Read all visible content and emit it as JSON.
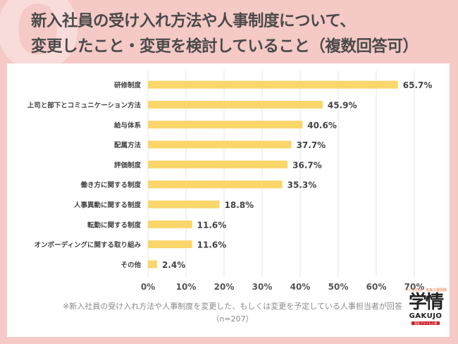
{
  "title_line1": "新入社員の受け入れ方法や人事制度について、",
  "title_line2": "変更したこと・変更を検討していること（複数回答可）",
  "footnote": "※新入社員の受け入れ方法や人事制度を変更した、もしくは変更を予定している人事担当者が回答",
  "sample_size": "（n=207）",
  "logo": {
    "tagline": "つくるのは、未来の選択肢",
    "mark": "学情",
    "brand": "GAKUJO",
    "band": "東証プライム上場"
  },
  "colors": {
    "bar": "#fad66b",
    "background": "#f4c9c6",
    "panel": "#ffffff",
    "grid": "#e4e4e4"
  },
  "chart_data": {
    "type": "bar",
    "orientation": "horizontal",
    "categories": [
      "研修制度",
      "上司と部下とコミュニケーション方法",
      "給与体系",
      "配属方法",
      "評価制度",
      "働き方に関する制度",
      "人事異動に関する制度",
      "転勤に関する制度",
      "オンボーディングに関する取り組み",
      "その他"
    ],
    "values": [
      65.7,
      45.9,
      40.6,
      37.7,
      36.7,
      35.3,
      18.8,
      11.6,
      11.6,
      2.4
    ],
    "value_labels": [
      "65.7%",
      "45.9%",
      "40.6%",
      "37.7%",
      "36.7%",
      "35.3%",
      "18.8%",
      "11.6%",
      "11.6%",
      "2.4%"
    ],
    "xlim": [
      0,
      70
    ],
    "xticks": [
      "0%",
      "10%",
      "20%",
      "30%",
      "40%",
      "50%",
      "60%",
      "70%"
    ],
    "grid": true
  }
}
